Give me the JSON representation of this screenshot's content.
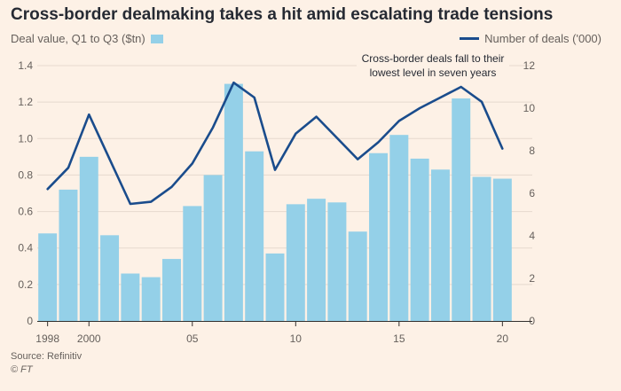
{
  "title": "Cross-border dealmaking takes a hit amid escalating trade tensions",
  "legend": {
    "bars": "Deal value, Q1 to Q3 ($tn)",
    "line": "Number of deals ('000)"
  },
  "annotation": {
    "line1": "Cross-border deals fall to their",
    "line2": "lowest level in seven years"
  },
  "source": "Source: Refinitiv",
  "credit": "© FT",
  "colors": {
    "background": "#fdf1e6",
    "bar": "#94d0e8",
    "line": "#1a4c8c",
    "grid": "#e6d9ce"
  },
  "chart_data": {
    "type": "bar",
    "x": [
      1998,
      1999,
      2000,
      2001,
      2002,
      2003,
      2004,
      2005,
      2006,
      2007,
      2008,
      2009,
      2010,
      2011,
      2012,
      2013,
      2014,
      2015,
      2016,
      2017,
      2018,
      2019,
      2020
    ],
    "x_tick_labels": [
      {
        "x": 1998,
        "label": "1998"
      },
      {
        "x": 2000,
        "label": "2000"
      },
      {
        "x": 2005,
        "label": "05"
      },
      {
        "x": 2010,
        "label": "10"
      },
      {
        "x": 2015,
        "label": "15"
      },
      {
        "x": 2020,
        "label": "20"
      }
    ],
    "series": [
      {
        "name": "Deal value, Q1 to Q3 ($tn)",
        "type": "bar",
        "axis": "left",
        "values": [
          0.48,
          0.72,
          0.9,
          0.47,
          0.26,
          0.24,
          0.34,
          0.63,
          0.8,
          1.3,
          0.93,
          0.37,
          0.64,
          0.67,
          0.65,
          0.49,
          0.92,
          1.02,
          0.89,
          0.83,
          1.22,
          0.79,
          0.78
        ]
      },
      {
        "name": "Number of deals ('000)",
        "type": "line",
        "axis": "right",
        "values": [
          6.2,
          7.2,
          9.7,
          7.6,
          5.5,
          5.6,
          6.3,
          7.4,
          9.1,
          11.2,
          10.5,
          7.1,
          8.8,
          9.6,
          8.6,
          7.6,
          8.4,
          9.4,
          10.0,
          10.5,
          11.0,
          10.3,
          8.1
        ]
      }
    ],
    "y_left": {
      "ylim": [
        0,
        1.4
      ],
      "ticks": [
        0,
        0.2,
        0.4,
        0.6,
        0.8,
        1.0,
        1.2,
        1.4
      ],
      "tick_labels": [
        "0",
        "0.2",
        "0.4",
        "0.6",
        "0.8",
        "1.0",
        "1.2",
        "1.4"
      ]
    },
    "y_right": {
      "ylim": [
        0,
        12
      ],
      "ticks": [
        0,
        2,
        4,
        6,
        8,
        10,
        12
      ],
      "tick_labels": [
        "0",
        "2",
        "4",
        "6",
        "8",
        "10",
        "12"
      ]
    },
    "grid": true,
    "legend_placement": "top"
  }
}
